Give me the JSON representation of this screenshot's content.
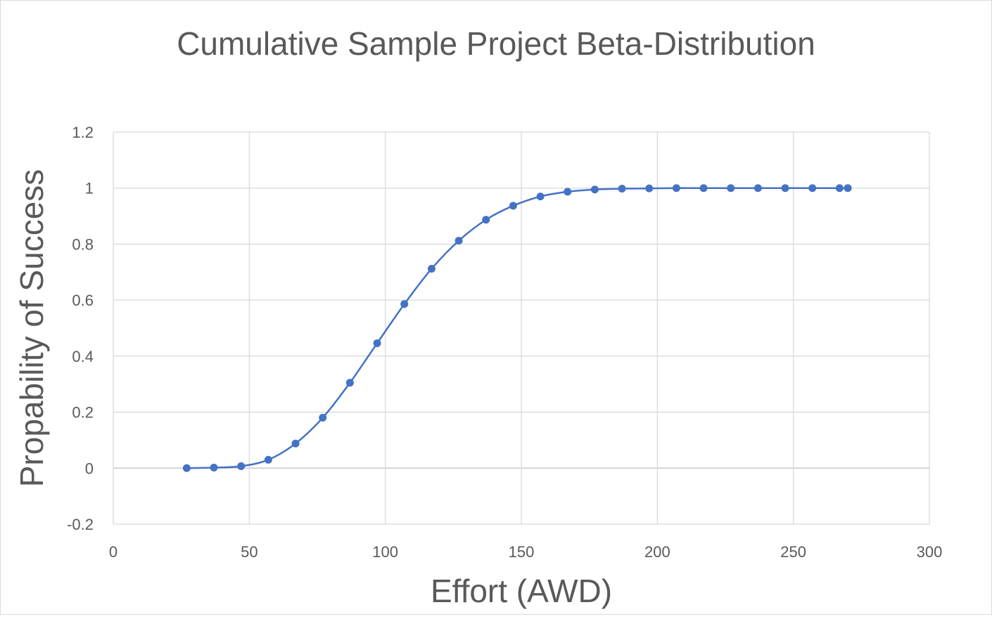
{
  "chart_data": {
    "type": "scatter",
    "title": "Cumulative Sample Project Beta-Distribution",
    "xlabel": "Effort (AWD)",
    "ylabel": "Propability of Success",
    "xlim": [
      0,
      300
    ],
    "ylim": [
      -0.2,
      1.2
    ],
    "xticks": [
      0,
      50,
      100,
      150,
      200,
      250,
      300
    ],
    "yticks": [
      -0.2,
      0,
      0.2,
      0.4,
      0.6,
      0.8,
      1,
      1.2
    ],
    "ytick_labels": [
      "-0.2",
      "0",
      "0.2",
      "0.4",
      "0.6",
      "0.8",
      "1",
      "1.2"
    ],
    "grid": true,
    "smooth_line": true,
    "marker": "circle",
    "colors": {
      "series": "#4472C4",
      "grid": "#d9d9d9",
      "text": "#595959"
    },
    "series": [
      {
        "x": [
          27,
          37,
          47,
          57,
          67,
          77,
          87,
          97,
          107,
          117,
          127,
          137,
          147,
          157,
          167,
          177,
          187,
          197,
          207,
          217,
          227,
          237,
          247,
          257,
          267,
          270
        ],
        "y": [
          0,
          0.002,
          0.007,
          0.03,
          0.088,
          0.18,
          0.305,
          0.446,
          0.586,
          0.712,
          0.812,
          0.887,
          0.937,
          0.97,
          0.987,
          0.995,
          0.998,
          0.999,
          1,
          1,
          1,
          1,
          1,
          1,
          1,
          1
        ]
      }
    ]
  }
}
